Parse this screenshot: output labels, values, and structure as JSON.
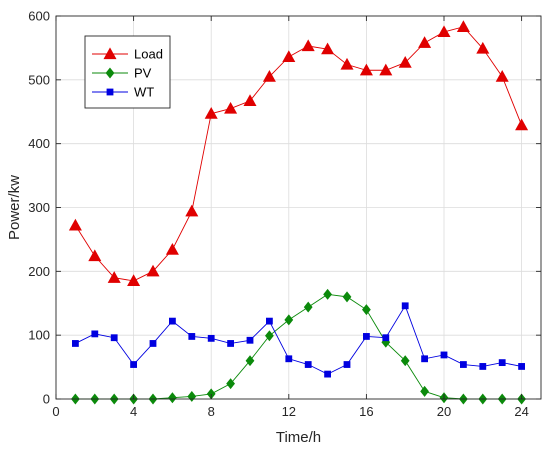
{
  "chart_data": {
    "type": "line",
    "title": "",
    "xlabel": "Time/h",
    "ylabel": "Power/kw",
    "xlim": [
      0,
      25
    ],
    "ylim": [
      0,
      600
    ],
    "xticks": [
      0,
      4,
      8,
      12,
      16,
      20,
      24
    ],
    "yticks": [
      0,
      100,
      200,
      300,
      400,
      500,
      600
    ],
    "grid": true,
    "legend_position": "top-left",
    "x": [
      1,
      2,
      3,
      4,
      5,
      6,
      7,
      8,
      9,
      10,
      11,
      12,
      13,
      14,
      15,
      16,
      17,
      18,
      19,
      20,
      21,
      22,
      23,
      24
    ],
    "series": [
      {
        "name": "Load",
        "color": "#e00000",
        "marker": "triangle",
        "values": [
          272,
          224,
          190,
          185,
          200,
          234,
          294,
          447,
          455,
          467,
          505,
          536,
          553,
          548,
          524,
          515,
          515,
          527,
          558,
          575,
          583,
          549,
          505,
          429
        ]
      },
      {
        "name": "PV",
        "color": "#0b8a0b",
        "marker": "diamond",
        "values": [
          0,
          0,
          0,
          0,
          0,
          2,
          4,
          8,
          24,
          60,
          99,
          124,
          144,
          164,
          160,
          140,
          89,
          60,
          12,
          2,
          0,
          0,
          0,
          0
        ]
      },
      {
        "name": "WT",
        "color": "#0000e0",
        "marker": "square",
        "values": [
          87,
          102,
          96,
          54,
          87,
          122,
          98,
          95,
          87,
          92,
          122,
          63,
          54,
          39,
          54,
          98,
          96,
          146,
          63,
          69,
          54,
          51,
          57,
          51
        ]
      }
    ]
  }
}
